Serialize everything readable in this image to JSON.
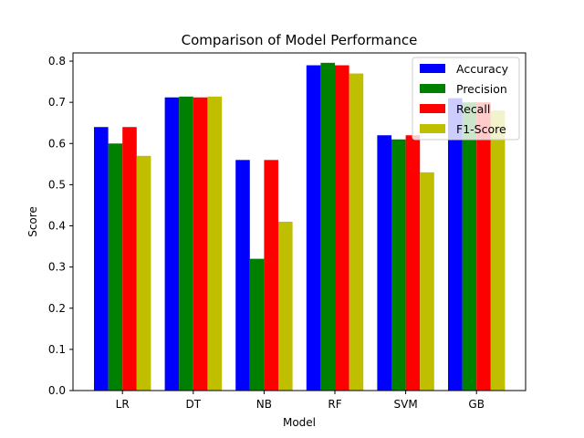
{
  "chart_data": {
    "type": "bar",
    "title": "Comparison of Model Performance",
    "xlabel": "Model",
    "ylabel": "Score",
    "categories": [
      "LR",
      "DT",
      "NB",
      "RF",
      "SVM",
      "GB"
    ],
    "ylim": [
      0,
      0.82
    ],
    "yticks": [
      0.0,
      0.1,
      0.2,
      0.3,
      0.4,
      0.5,
      0.6,
      0.7,
      0.8
    ],
    "ytick_labels": [
      "0.0",
      "0.1",
      "0.2",
      "0.3",
      "0.4",
      "0.5",
      "0.6",
      "0.7",
      "0.8"
    ],
    "grid": false,
    "legend_position": "top-right",
    "series": [
      {
        "name": "Accuracy",
        "color": "#0000ff",
        "values": [
          0.64,
          0.712,
          0.56,
          0.79,
          0.62,
          0.71
        ]
      },
      {
        "name": "Precision",
        "color": "#008000",
        "values": [
          0.6,
          0.714,
          0.32,
          0.796,
          0.61,
          0.7
        ]
      },
      {
        "name": "Recall",
        "color": "#ff0000",
        "values": [
          0.64,
          0.712,
          0.56,
          0.79,
          0.62,
          0.7
        ]
      },
      {
        "name": "F1-Score",
        "color": "#bfbf00",
        "values": [
          0.57,
          0.714,
          0.41,
          0.77,
          0.53,
          0.68
        ]
      }
    ]
  }
}
